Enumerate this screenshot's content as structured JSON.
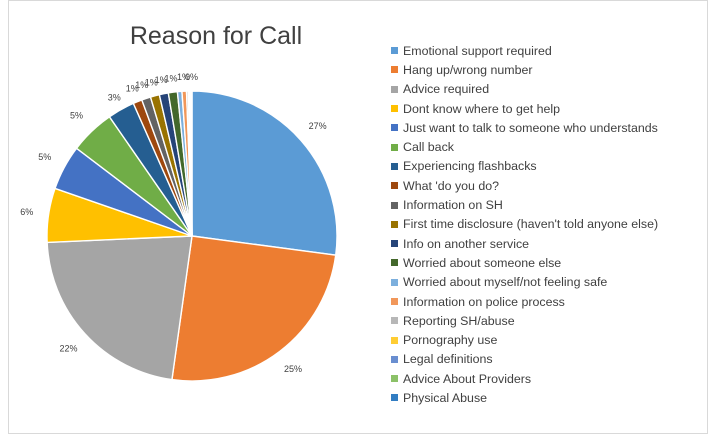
{
  "chart_data": {
    "type": "pie",
    "title": "Reason for Call",
    "legend_position": "right",
    "slices": [
      {
        "name": "Emotional support required",
        "value": 27,
        "label": "27%",
        "color": "#5b9bd5"
      },
      {
        "name": "Hang up/wrong number",
        "value": 25,
        "label": "25%",
        "color": "#ed7d31"
      },
      {
        "name": "Advice required",
        "value": 22,
        "label": "22%",
        "color": "#a5a5a5"
      },
      {
        "name": "Dont know where to get help",
        "value": 6,
        "label": "6%",
        "color": "#ffc000"
      },
      {
        "name": "Just want to talk to someone who understands",
        "value": 5,
        "label": "5%",
        "color": "#4472c4"
      },
      {
        "name": "Call back",
        "value": 5,
        "label": "5%",
        "color": "#70ad47"
      },
      {
        "name": "Experiencing flashbacks",
        "value": 3,
        "label": "3%",
        "color": "#255e91"
      },
      {
        "name": "What 'do you do?",
        "value": 1,
        "label": "1%",
        "color": "#9e480e"
      },
      {
        "name": "Information on SH",
        "value": 1,
        "label": "1%",
        "color": "#636363"
      },
      {
        "name": "First time disclosure (haven't told anyone else)",
        "value": 1,
        "label": "1%",
        "color": "#997300"
      },
      {
        "name": "Info on another service",
        "value": 1,
        "label": "1%",
        "color": "#264478"
      },
      {
        "name": "Worried about someone else",
        "value": 1,
        "label": "1%",
        "color": "#43682b"
      },
      {
        "name": "Worried about myself/not feeling safe",
        "value": 0.5,
        "label": "",
        "color": "#7cafdd"
      },
      {
        "name": "Information on police process",
        "value": 0.5,
        "label": "1%",
        "color": "#f1975a"
      },
      {
        "name": "Reporting SH/abuse",
        "value": 0.2,
        "label": "",
        "color": "#b7b7b7"
      },
      {
        "name": "Pornography use",
        "value": 0.1,
        "label": "",
        "color": "#ffcd33"
      },
      {
        "name": "Legal definitions",
        "value": 0.1,
        "label": "",
        "color": "#698ed0"
      },
      {
        "name": "Advice About Providers",
        "value": 0.1,
        "label": "",
        "color": "#8cc168"
      },
      {
        "name": "Physical Abuse",
        "value": 0.1,
        "label": "0%",
        "color": "#327dc2"
      }
    ]
  }
}
